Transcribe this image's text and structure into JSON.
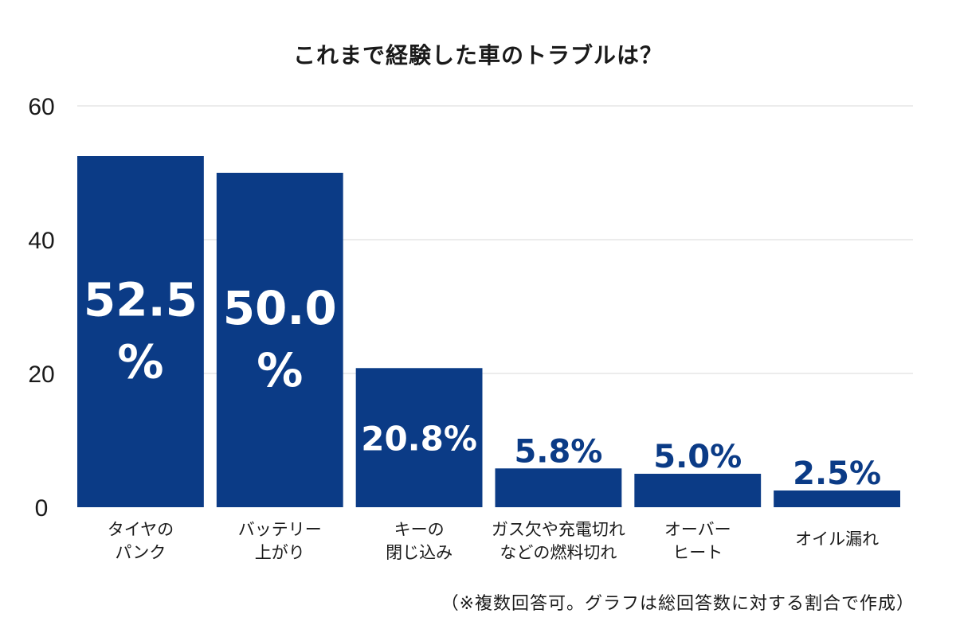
{
  "chart_data": {
    "type": "bar",
    "title": "これまで経験した車のトラブルは？",
    "categories": [
      [
        "タイヤの",
        "パンク"
      ],
      [
        "バッテリー",
        "上がり"
      ],
      [
        "キーの",
        "閉じ込み"
      ],
      [
        "ガス欠や充電切れ",
        "などの燃料切れ"
      ],
      [
        "オーバー",
        "ヒート"
      ],
      [
        "オイル漏れ"
      ]
    ],
    "values": [
      52.5,
      50.0,
      20.8,
      5.8,
      5.0,
      2.5
    ],
    "data_labels": [
      [
        "52.5",
        "%"
      ],
      [
        "50.0",
        "%"
      ],
      [
        "20.8%"
      ],
      [
        "5.8%"
      ],
      [
        "5.0%"
      ],
      [
        "2.5%"
      ]
    ],
    "ylim": [
      0,
      60
    ],
    "yticks": [
      0,
      20,
      40,
      60
    ],
    "grid": true,
    "bar_color": "#0b3b86",
    "label_color_inside": "#ffffff",
    "label_color_outside": "#0b3b86",
    "gridline_color": "#d9d9d9",
    "xlabel": "",
    "ylabel": ""
  },
  "footnote": "（※複数回答可。グラフは総回答数に対する割合で作成）"
}
